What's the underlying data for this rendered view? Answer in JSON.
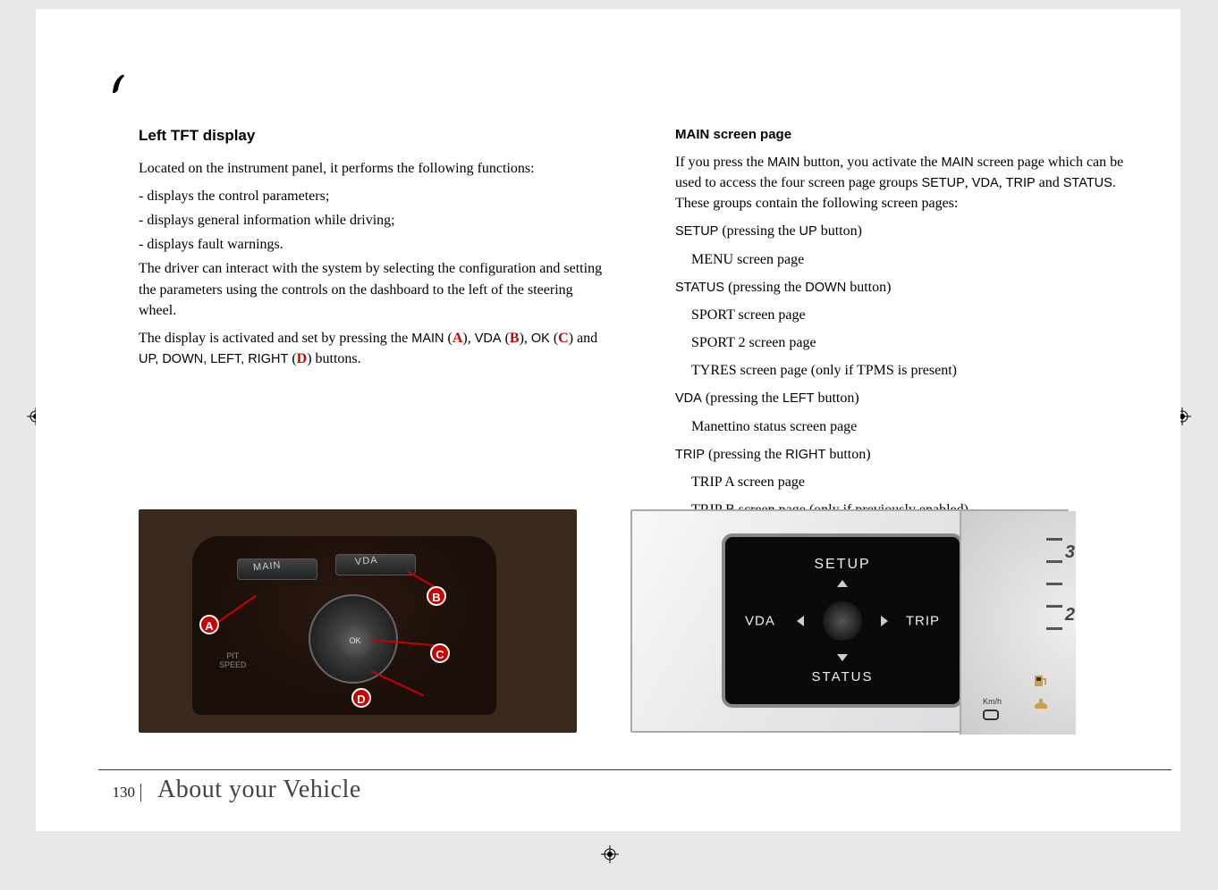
{
  "page_number": "130",
  "section_title": "About your Vehicle",
  "left_col": {
    "heading": "Left TFT display",
    "intro": "Located on the instrument panel, it performs the following functions:",
    "bullets": [
      "- displays the control parameters;",
      "- displays general information while driving;",
      "- displays fault warnings."
    ],
    "para1": "The driver can interact with the system by selecting the configuration and setting the parameters using the controls on the dashboard to the left of the steering wheel.",
    "para2_pre": "The display is activated and set by pressing the ",
    "para2_main": "MAIN",
    "para2_a": "A",
    "para2_vda": "VDA",
    "para2_b": "B",
    "para2_ok": "OK",
    "para2_c": "C",
    "para2_and": " and ",
    "para2_dir": "UP, DOWN, LEFT, RIGHT",
    "para2_d": "D",
    "para2_post": " buttons."
  },
  "right_col": {
    "heading": "MAIN screen page",
    "intro_1": "If you press the ",
    "intro_main": "MAIN",
    "intro_2": " button, you activate the ",
    "intro_main2": "MAIN",
    "intro_3": " screen page which can be used to access the four screen page groups ",
    "intro_setup": "SETUP",
    "intro_4": ", ",
    "intro_vda": "VDA",
    "intro_5": ", ",
    "intro_trip": "TRIP",
    "intro_6": " and ",
    "intro_status": "STATUS",
    "intro_7": ". These groups contain the following screen pages:",
    "groups": [
      {
        "label": "SETUP",
        "press": " (pressing the ",
        "btn": "UP",
        "post": " button)",
        "items": [
          "MENU screen page"
        ]
      },
      {
        "label": "STATUS",
        "press": " (pressing the ",
        "btn": "DOWN",
        "post": " button)",
        "items": [
          "SPORT screen page",
          "SPORT 2 screen page",
          "TYRES screen page (only if TPMS is present)"
        ]
      },
      {
        "label": "VDA",
        "press": " (pressing the ",
        "btn": "LEFT",
        "post": " button)",
        "items": [
          "Manettino status screen page"
        ]
      },
      {
        "label": "TRIP",
        "press": " (pressing the ",
        "btn": "RIGHT",
        "post": " button)",
        "items": [
          "TRIP A screen page",
          "TRIP B screen page (only if previously enabled)."
        ]
      }
    ]
  },
  "fig1": {
    "main_label": "MAIN",
    "vda_label": "VDA",
    "ok_label": "OK",
    "pit_label": "PIT\nSPEED",
    "callouts": {
      "a": "A",
      "b": "B",
      "c": "C",
      "d": "D"
    }
  },
  "fig2": {
    "setup": "SETUP",
    "status": "STATUS",
    "vda": "VDA",
    "trip": "TRIP",
    "kmh": "Km/h",
    "gauge_nums": [
      "3",
      "2"
    ]
  },
  "style": {
    "accent": "#cc0000",
    "bg_page": "#ffffff",
    "bg_outer": "#e8e8e8"
  }
}
